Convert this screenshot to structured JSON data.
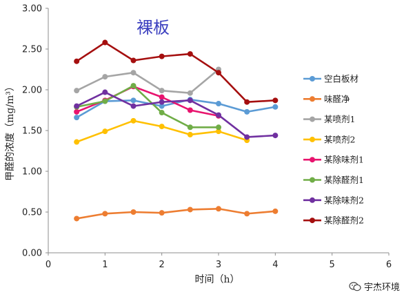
{
  "chart_data": {
    "type": "line",
    "title": "裸板",
    "xlabel": "时间（h）",
    "ylabel": "甲醛的浓度（mg/m³）",
    "xlim": [
      0,
      6
    ],
    "ylim": [
      0,
      3.0
    ],
    "x_ticks": [
      "0",
      "1",
      "2",
      "3",
      "4",
      "5",
      "6"
    ],
    "y_ticks": [
      "0.00",
      "0.50",
      "1.00",
      "1.50",
      "2.00",
      "2.50",
      "3.00"
    ],
    "grid": false,
    "legend_position": "right",
    "x": [
      0.5,
      1,
      1.5,
      2,
      2.5,
      3,
      3.5,
      4
    ],
    "series": [
      {
        "name": "空白板材",
        "color": "#5b9bd5",
        "values": [
          1.66,
          1.86,
          1.87,
          1.8,
          1.88,
          1.83,
          1.73,
          1.79
        ]
      },
      {
        "name": "味醛净",
        "color": "#ed7d31",
        "values": [
          0.42,
          0.48,
          0.5,
          0.49,
          0.53,
          0.54,
          0.48,
          0.51
        ]
      },
      {
        "name": "某喷剂1",
        "color": "#a5a5a5",
        "values": [
          1.99,
          2.16,
          2.21,
          1.99,
          1.96,
          2.25,
          null,
          null
        ]
      },
      {
        "name": "某喷剂2",
        "color": "#ffc000",
        "values": [
          1.36,
          1.49,
          1.62,
          1.55,
          1.45,
          1.49,
          1.38,
          null
        ]
      },
      {
        "name": "某除味剂1",
        "color": "#e8146e",
        "values": [
          1.73,
          1.87,
          2.04,
          1.91,
          1.75,
          1.68,
          null,
          null
        ]
      },
      {
        "name": "某除醛剂1",
        "color": "#70ad47",
        "values": [
          1.79,
          1.86,
          2.05,
          1.72,
          1.54,
          1.54,
          null,
          null
        ]
      },
      {
        "name": "某除味剂2",
        "color": "#7030a0",
        "values": [
          1.8,
          1.97,
          1.8,
          1.85,
          1.87,
          1.69,
          1.42,
          1.44
        ]
      },
      {
        "name": "某除醛剂2",
        "color": "#a50f0f",
        "values": [
          2.35,
          2.58,
          2.36,
          2.41,
          2.44,
          2.21,
          1.85,
          1.87
        ]
      }
    ]
  },
  "watermark": {
    "text": "宇杰环境",
    "icon": "wechat-icon"
  }
}
